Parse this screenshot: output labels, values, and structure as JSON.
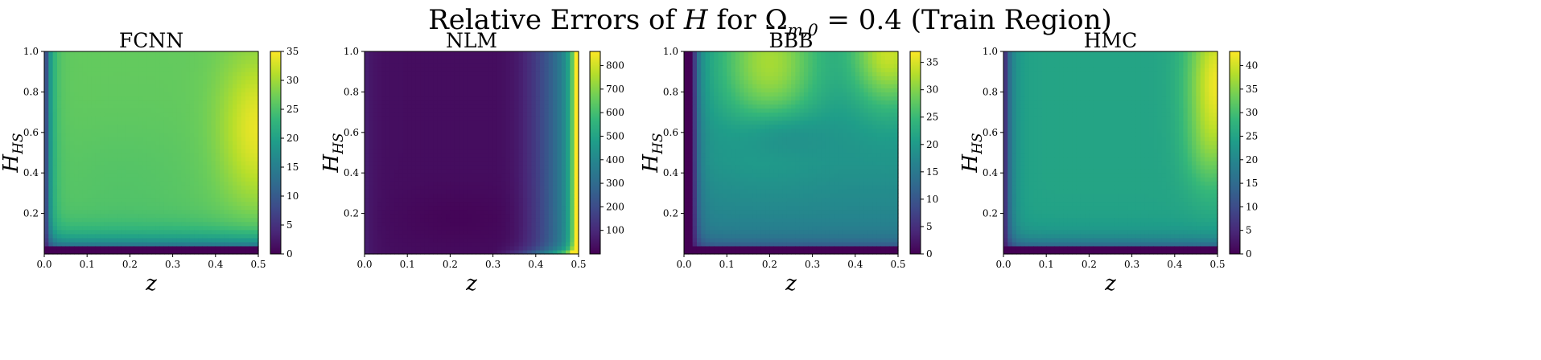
{
  "figure": {
    "title_prefix": "Relative Errors of ",
    "title_var": "H",
    "title_mid": " for ",
    "title_omega": "Ω",
    "title_omega_sub": "m,0",
    "title_suffix": " = 0.4 (Train Region)"
  },
  "colormap": "viridis",
  "colormap_stops": [
    "#440154",
    "#482878",
    "#3e4989",
    "#31688e",
    "#26828e",
    "#1f9e89",
    "#35b779",
    "#6ece58",
    "#b5de2b",
    "#fde725"
  ],
  "chart_data": [
    {
      "type": "heatmap",
      "title": "FCNN",
      "xlabel": "z",
      "ylabel": "H",
      "ylabel_sub": "HS",
      "xlim": [
        0,
        0.5
      ],
      "ylim": [
        0,
        1
      ],
      "xticks": [
        "0.0",
        "0.1",
        "0.2",
        "0.3",
        "0.4",
        "0.5"
      ],
      "yticks": [
        "0.2",
        "0.4",
        "0.6",
        "0.8",
        "1.0"
      ],
      "colorbar_range": [
        0,
        35
      ],
      "colorbar_ticks": [
        "0",
        "5",
        "10",
        "15",
        "20",
        "25",
        "30",
        "35"
      ],
      "value_model": "fcnn",
      "approx_values": {
        "typical": 27,
        "max_upper_right": 34,
        "min_bottom_edge": 0
      }
    },
    {
      "type": "heatmap",
      "title": "NLM",
      "xlabel": "z",
      "ylabel": "H",
      "ylabel_sub": "HS",
      "xlim": [
        0,
        0.5
      ],
      "ylim": [
        0,
        1
      ],
      "xticks": [
        "0.0",
        "0.1",
        "0.2",
        "0.3",
        "0.4",
        "0.5"
      ],
      "yticks": [
        "0.2",
        "0.4",
        "0.6",
        "0.8",
        "1.0"
      ],
      "colorbar_range": [
        0,
        860
      ],
      "colorbar_ticks": [
        "100",
        "200",
        "300",
        "400",
        "500",
        "600",
        "700",
        "800"
      ],
      "value_model": "nlm",
      "approx_values": {
        "typical": 40,
        "max_right_edge": 850,
        "min": 0
      }
    },
    {
      "type": "heatmap",
      "title": "BBB",
      "xlabel": "z",
      "ylabel": "H",
      "ylabel_sub": "HS",
      "xlim": [
        0,
        0.5
      ],
      "ylim": [
        0,
        1
      ],
      "xticks": [
        "0.0",
        "0.1",
        "0.2",
        "0.3",
        "0.4",
        "0.5"
      ],
      "yticks": [
        "0.2",
        "0.4",
        "0.6",
        "0.8",
        "1.0"
      ],
      "colorbar_range": [
        0,
        37
      ],
      "colorbar_ticks": [
        "0",
        "5",
        "10",
        "15",
        "20",
        "25",
        "30",
        "35"
      ],
      "value_model": "bbb",
      "approx_values": {
        "typical": 22,
        "max_top": 36,
        "min_left_edge": 0
      }
    },
    {
      "type": "heatmap",
      "title": "HMC",
      "xlabel": "z",
      "ylabel": "H",
      "ylabel_sub": "HS",
      "xlim": [
        0,
        0.5
      ],
      "ylim": [
        0,
        1
      ],
      "xticks": [
        "0.0",
        "0.1",
        "0.2",
        "0.3",
        "0.4",
        "0.5"
      ],
      "yticks": [
        "0.2",
        "0.4",
        "0.6",
        "0.8",
        "1.0"
      ],
      "colorbar_range": [
        0,
        43
      ],
      "colorbar_ticks": [
        "0",
        "5",
        "10",
        "15",
        "20",
        "25",
        "30",
        "35",
        "40"
      ],
      "value_model": "hmc",
      "approx_values": {
        "typical": 25,
        "max_upper_right": 43,
        "min_bottom_edge": 0
      }
    }
  ]
}
